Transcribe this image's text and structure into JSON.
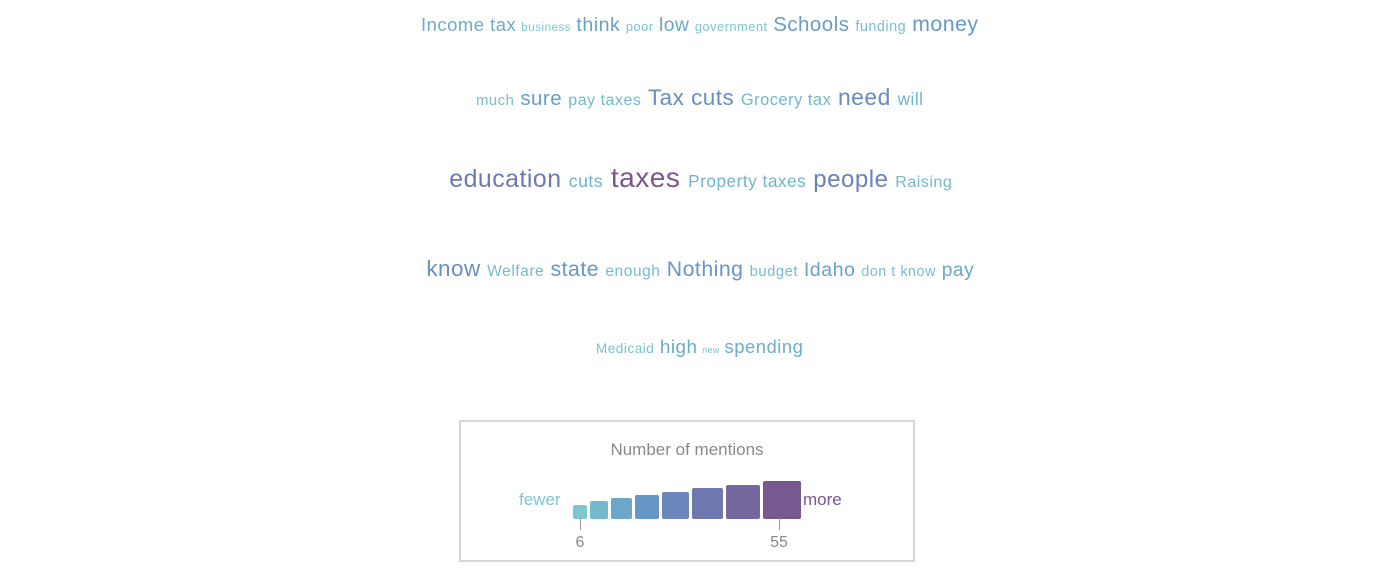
{
  "cloud": {
    "lines": [
      {
        "words": [
          {
            "text": "Income tax",
            "count": 18
          },
          {
            "text": "business",
            "count": 7
          },
          {
            "text": "think",
            "count": 22
          },
          {
            "text": "poor",
            "count": 8
          },
          {
            "text": "low",
            "count": 20
          },
          {
            "text": "government",
            "count": 8
          },
          {
            "text": "Schools",
            "count": 24
          },
          {
            "text": "funding",
            "count": 10
          },
          {
            "text": "money",
            "count": 26
          }
        ]
      },
      {
        "words": [
          {
            "text": "much",
            "count": 11
          },
          {
            "text": "sure",
            "count": 24
          },
          {
            "text": "pay taxes",
            "count": 13
          },
          {
            "text": "Tax cuts",
            "count": 31
          },
          {
            "text": "Grocery tax",
            "count": 14
          },
          {
            "text": "need",
            "count": 32
          },
          {
            "text": "will",
            "count": 15
          }
        ]
      },
      {
        "words": [
          {
            "text": "education",
            "count": 40
          },
          {
            "text": "cuts",
            "count": 16
          },
          {
            "text": "taxes",
            "count": 55
          },
          {
            "text": "Property taxes",
            "count": 15
          },
          {
            "text": "people",
            "count": 36
          },
          {
            "text": "Raising",
            "count": 13
          }
        ]
      },
      {
        "words": [
          {
            "text": "know",
            "count": 30
          },
          {
            "text": "Welfare",
            "count": 12
          },
          {
            "text": "state",
            "count": 26
          },
          {
            "text": "enough",
            "count": 12
          },
          {
            "text": "Nothing",
            "count": 27
          },
          {
            "text": "budget",
            "count": 11
          },
          {
            "text": "Idaho",
            "count": 22
          },
          {
            "text": "don t know",
            "count": 10
          },
          {
            "text": "pay",
            "count": 20
          }
        ]
      },
      {
        "words": [
          {
            "text": "Medicaid",
            "count": 9
          },
          {
            "text": "high",
            "count": 19
          },
          {
            "text": "new",
            "count": 6
          },
          {
            "text": "spending",
            "count": 18
          }
        ]
      }
    ]
  },
  "legend": {
    "title": "Number of mentions",
    "fewer_label": "fewer",
    "more_label": "more",
    "min_value": "6",
    "max_value": "55",
    "colors": [
      "#7dc8cf",
      "#74b9cd",
      "#6aa7ca",
      "#6596c6",
      "#6a86bd",
      "#6f77ae",
      "#75689f",
      "#775890"
    ]
  },
  "colors": {
    "low": "#7fcfd2",
    "high": "#6f4f86"
  }
}
